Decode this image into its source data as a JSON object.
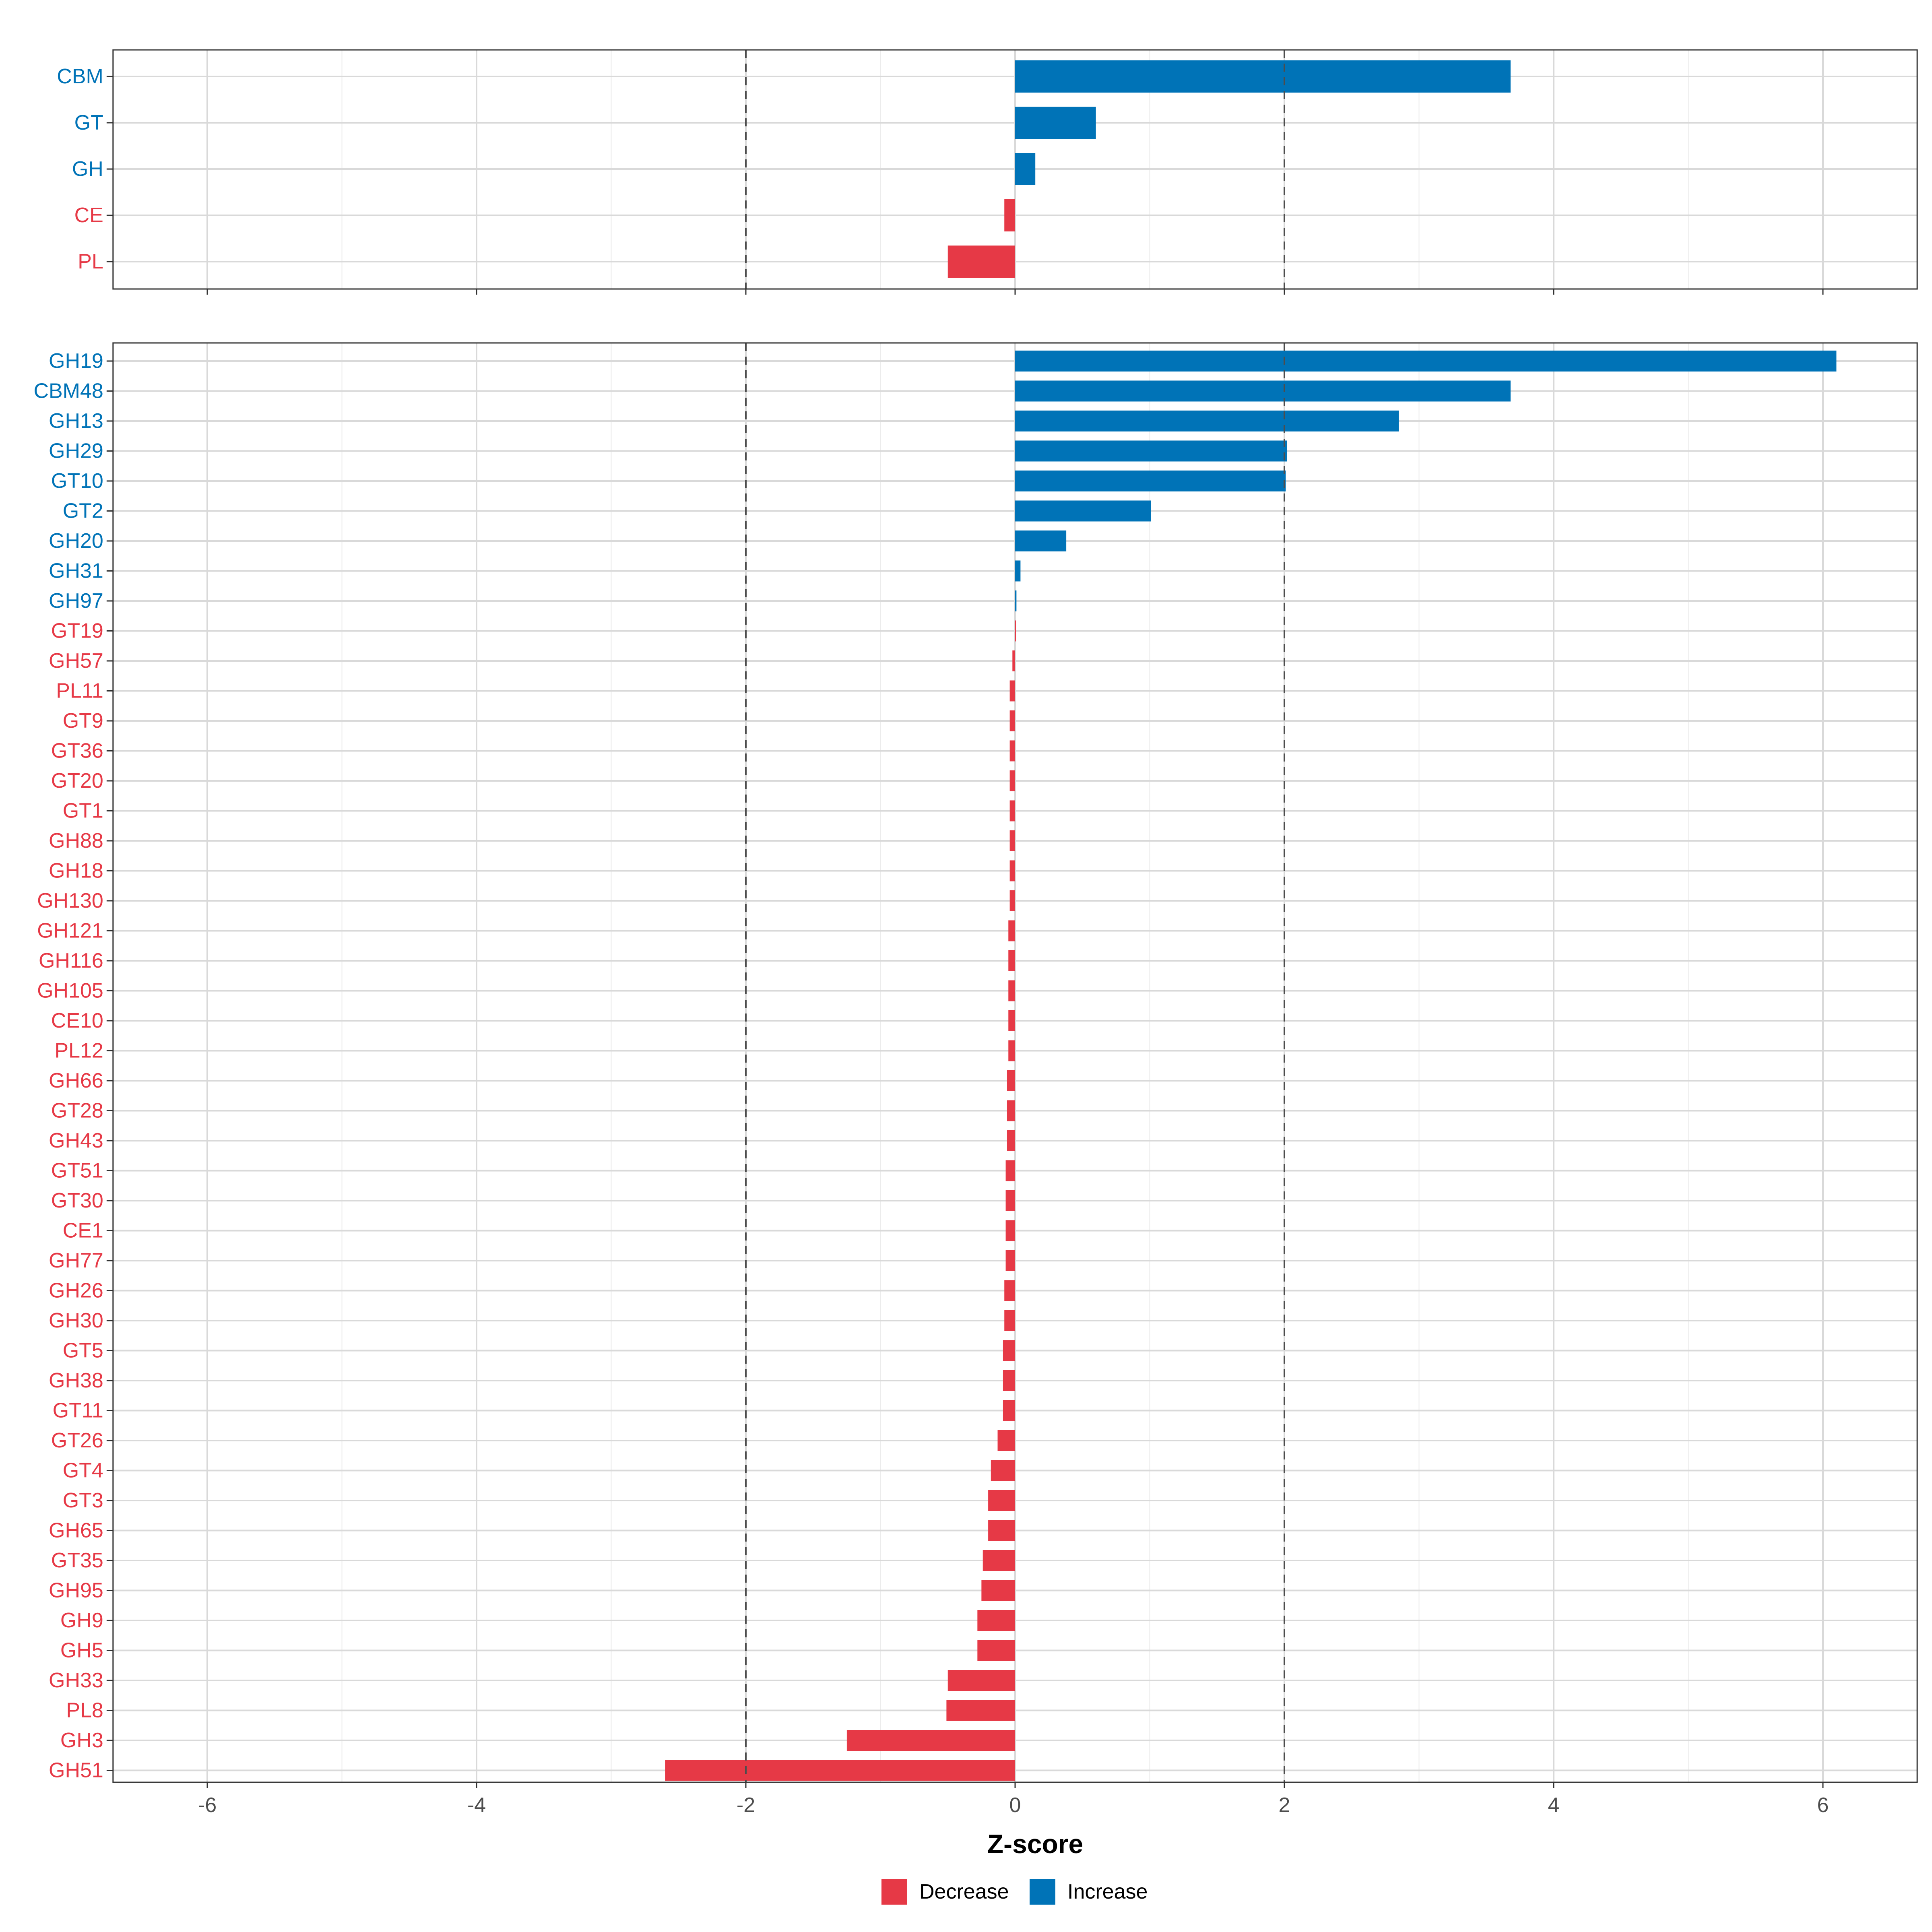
{
  "chart_data": {
    "type": "bar",
    "orientation": "horizontal",
    "xlabel": "Z-score",
    "xlim": [
      -6.7,
      6.7
    ],
    "x_ticks": [
      -6,
      -4,
      -2,
      0,
      2,
      4,
      6
    ],
    "x_tick_labels": [
      "-6",
      "-4",
      "-2",
      "0",
      "2",
      "4",
      "6"
    ],
    "reference_lines": [
      -2,
      2
    ],
    "colors": {
      "Increase": "#0073b7",
      "Decrease": "#e63946"
    },
    "legend": {
      "position": "bottom",
      "entries": [
        {
          "label": "Decrease",
          "key": "Decrease"
        },
        {
          "label": "Increase",
          "key": "Increase"
        }
      ]
    },
    "panels": [
      {
        "name": "class",
        "categories": [
          "CBM",
          "GT",
          "GH",
          "CE",
          "PL"
        ],
        "values": [
          3.68,
          0.6,
          0.15,
          -0.08,
          -0.5
        ],
        "direction": [
          "Increase",
          "Increase",
          "Increase",
          "Decrease",
          "Decrease"
        ]
      },
      {
        "name": "family",
        "categories": [
          "GH19",
          "CBM48",
          "GH13",
          "GH29",
          "GT10",
          "GT2",
          "GH20",
          "GH31",
          "GH97",
          "GT19",
          "GH57",
          "PL11",
          "GT9",
          "GT36",
          "GT20",
          "GT1",
          "GH88",
          "GH18",
          "GH130",
          "GH121",
          "GH116",
          "GH105",
          "CE10",
          "PL12",
          "GH66",
          "GT28",
          "GH43",
          "GT51",
          "GT30",
          "CE1",
          "GH77",
          "GH26",
          "GH30",
          "GT5",
          "GH38",
          "GT11",
          "GT26",
          "GT4",
          "GT3",
          "GH65",
          "GT35",
          "GH95",
          "GH9",
          "GH5",
          "GH33",
          "PL8",
          "GH3",
          "GH51"
        ],
        "values": [
          6.1,
          3.68,
          2.85,
          2.02,
          2.01,
          1.01,
          0.38,
          0.04,
          0.01,
          0.0,
          -0.02,
          -0.04,
          -0.04,
          -0.04,
          -0.04,
          -0.04,
          -0.04,
          -0.04,
          -0.04,
          -0.05,
          -0.05,
          -0.05,
          -0.05,
          -0.05,
          -0.06,
          -0.06,
          -0.06,
          -0.07,
          -0.07,
          -0.07,
          -0.07,
          -0.08,
          -0.08,
          -0.09,
          -0.09,
          -0.09,
          -0.13,
          -0.18,
          -0.2,
          -0.2,
          -0.24,
          -0.25,
          -0.28,
          -0.28,
          -0.5,
          -0.51,
          -1.25,
          -2.6
        ],
        "direction": [
          "Increase",
          "Increase",
          "Increase",
          "Increase",
          "Increase",
          "Increase",
          "Increase",
          "Increase",
          "Increase",
          "Decrease",
          "Decrease",
          "Decrease",
          "Decrease",
          "Decrease",
          "Decrease",
          "Decrease",
          "Decrease",
          "Decrease",
          "Decrease",
          "Decrease",
          "Decrease",
          "Decrease",
          "Decrease",
          "Decrease",
          "Decrease",
          "Decrease",
          "Decrease",
          "Decrease",
          "Decrease",
          "Decrease",
          "Decrease",
          "Decrease",
          "Decrease",
          "Decrease",
          "Decrease",
          "Decrease",
          "Decrease",
          "Decrease",
          "Decrease",
          "Decrease",
          "Decrease",
          "Decrease",
          "Decrease",
          "Decrease",
          "Decrease",
          "Decrease",
          "Decrease",
          "Decrease"
        ]
      }
    ]
  }
}
